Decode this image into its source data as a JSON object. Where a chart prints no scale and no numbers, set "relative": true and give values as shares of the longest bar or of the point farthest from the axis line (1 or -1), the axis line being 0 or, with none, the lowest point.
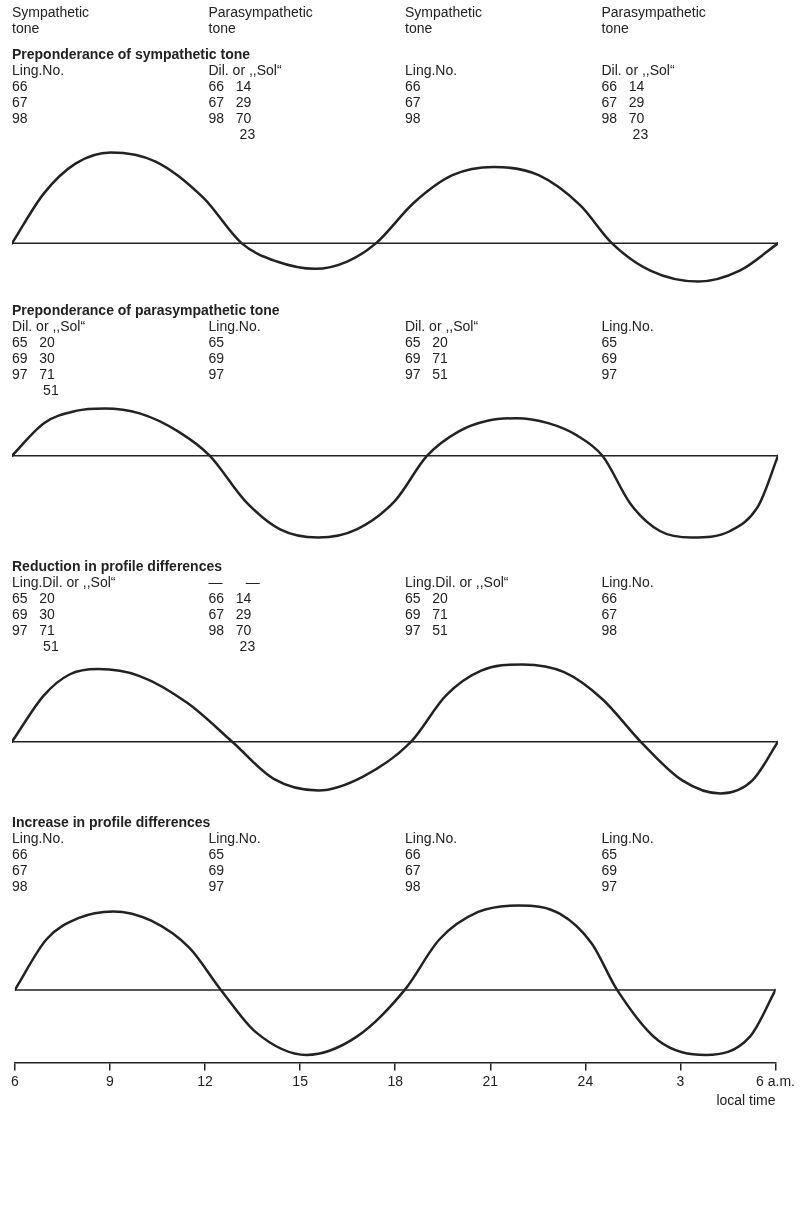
{
  "chart_data": [
    {
      "type": "line",
      "title": "Preponderance of sympathetic tone",
      "annotations": [
        "Sympathetic\ntone",
        "Parasympathetic\ntone",
        "Sympathetic\ntone",
        "Parasympathetic\ntone",
        "Ling.No.\n66\n67\n98",
        "Dil. or ,,Sol“\n66   14\n67   29\n98   70\n        23",
        "Ling.No.\n66\n67\n98",
        "Dil. or ,,Sol“\n66   14\n67   29\n98   70\n        23"
      ],
      "x": [
        "--01-01T06:00",
        "--01-01T07:00",
        "--01-01T08:00",
        "--01-01T09:06",
        "--01-01T10:30",
        "--01-01T12:00",
        "--01-01T13:12",
        "--01-01T14:18",
        "--01-01T15:30",
        "--01-01T16:30",
        "--01-01T17:24",
        "--01-01T18:36",
        "--01-01T19:48",
        "--01-01T21:06",
        "--01-01T22:30",
        "--01-01T23:48",
        "--01-02T00:48",
        "--01-02T02:00",
        "--01-02T03:30",
        "--01-02T04:48",
        "--01-02T06:00"
      ],
      "relative": true,
      "xlim": [
        "--01-01T06:00",
        "--01-02T06:00"
      ],
      "tick_labels": false,
      "series": [
        {
          "color": "#222222",
          "values": [
            0,
            0.55,
            0.88,
            1,
            0.9,
            0.5,
            0,
            -0.2,
            -0.28,
            -0.2,
            0,
            0.45,
            0.75,
            0.84,
            0.75,
            0.42,
            0,
            -0.3,
            -0.42,
            -0.3,
            0
          ]
        }
      ]
    },
    {
      "type": "line",
      "title": "Preponderance of parasympathetic tone",
      "annotations": [
        "Dil. or ,,Sol“\n65   20\n69   30\n97   71\n        51",
        "Ling.No.\n65\n69\n97",
        "Dil. or ,,Sol“\n65   20\n69   71\n97   51",
        "Ling.No.\n65\n69\n97"
      ],
      "x": [
        "--01-01T06:00",
        "--01-01T07:00",
        "--01-01T08:00",
        "--01-01T08:54",
        "--01-01T10:00",
        "--01-01T11:12",
        "--01-01T12:12",
        "--01-01T13:18",
        "--01-01T14:24",
        "--01-01T15:36",
        "--01-01T16:48",
        "--01-01T18:00",
        "--01-01T19:00",
        "--01-01T20:00",
        "--01-01T20:54",
        "--01-01T21:48",
        "--01-01T22:48",
        "--01-01T23:42",
        "--01-02T00:30",
        "--01-02T01:24",
        "--01-02T02:18",
        "--01-02T03:18",
        "--01-02T04:30",
        "--01-02T05:24",
        "--01-02T06:00"
      ],
      "relative": true,
      "xlim": [
        "--01-01T06:00",
        "--01-02T06:00"
      ],
      "tick_labels": false,
      "series": [
        {
          "color": "#222222",
          "values": [
            0,
            0.4,
            0.55,
            0.58,
            0.52,
            0.3,
            0,
            -0.55,
            -0.9,
            -1,
            -0.9,
            -0.55,
            0,
            0.3,
            0.43,
            0.46,
            0.4,
            0.25,
            0,
            -0.6,
            -0.92,
            -1,
            -0.92,
            -0.6,
            0
          ]
        }
      ]
    },
    {
      "type": "line",
      "title": "Reduction in profile differences",
      "annotations": [
        "Ling.Dil. or ,,Sol“\n65   20\n69   30\n97   71\n        51",
        "—      —\n66   14\n67   29\n98   70\n        23",
        "Ling.Dil. or ,,Sol“\n65   20\n69   71\n97   51",
        "Ling.No.\n66\n67\n98"
      ],
      "x": [
        "--01-01T06:00",
        "--01-01T07:00",
        "--01-01T07:48",
        "--01-01T08:42",
        "--01-01T10:00",
        "--01-01T11:30",
        "--01-01T12:54",
        "--01-01T14:12",
        "--01-01T15:36",
        "--01-01T17:00",
        "--01-01T18:30",
        "--01-01T19:36",
        "--01-01T20:42",
        "--01-01T22:00",
        "--01-01T23:18",
        "--01-02T00:30",
        "--01-02T01:42",
        "--01-02T03:00",
        "--01-02T04:12",
        "--01-02T05:12",
        "--01-02T06:00"
      ],
      "relative": true,
      "xlim": [
        "--01-01T06:00",
        "--01-02T06:00"
      ],
      "tick_labels": false,
      "series": [
        {
          "color": "#222222",
          "values": [
            0,
            0.6,
            0.87,
            0.94,
            0.85,
            0.5,
            0,
            -0.48,
            -0.63,
            -0.45,
            0,
            0.6,
            0.92,
            1,
            0.9,
            0.55,
            0,
            -0.5,
            -0.67,
            -0.5,
            0
          ]
        }
      ]
    },
    {
      "type": "line",
      "title": "Increase in profile differences",
      "xlabel": "local time",
      "annotations": [
        "Ling.No.\n66\n67\n98",
        "Ling.No.\n65\n69\n97",
        "Ling.No.\n66\n67\n98",
        "Ling.No.\n65\n69\n97"
      ],
      "x": [
        "--01-01T06:00",
        "--01-01T07:00",
        "--01-01T08:00",
        "--01-01T09:06",
        "--01-01T10:18",
        "--01-01T11:30",
        "--01-01T12:30",
        "--01-01T13:36",
        "--01-01T15:12",
        "--01-01T16:48",
        "--01-01T18:18",
        "--01-01T19:24",
        "--01-01T20:36",
        "--01-01T21:54",
        "--01-01T23:12",
        "--01-02T00:12",
        "--01-02T01:00",
        "--01-02T02:18",
        "--01-02T03:48",
        "--01-02T05:12",
        "--01-02T06:00"
      ],
      "relative": true,
      "xlim": [
        "--01-01T06:00",
        "--01-02T06:00"
      ],
      "tick_labels": "x",
      "xticks": [
        {
          "value": "--01-01T06:00",
          "label": "6"
        },
        {
          "value": "--01-01T09:00",
          "label": "9"
        },
        {
          "value": "--01-01T12:00",
          "label": "12"
        },
        {
          "value": "--01-01T15:00",
          "label": "15"
        },
        {
          "value": "--01-01T18:00",
          "label": "18"
        },
        {
          "value": "--01-01T21:00",
          "label": "21"
        },
        {
          "value": "--01-02T00:00",
          "label": "24"
        },
        {
          "value": "--01-02T03:00",
          "label": "3"
        },
        {
          "value": "--01-02T06:00",
          "label": "6 a.m."
        }
      ],
      "series": [
        {
          "color": "#222222",
          "values": [
            0,
            0.6,
            0.85,
            0.93,
            0.82,
            0.5,
            0,
            -0.5,
            -0.77,
            -0.55,
            0,
            0.6,
            0.92,
            1,
            0.9,
            0.55,
            0,
            -0.6,
            -0.77,
            -0.55,
            0
          ]
        }
      ]
    }
  ]
}
